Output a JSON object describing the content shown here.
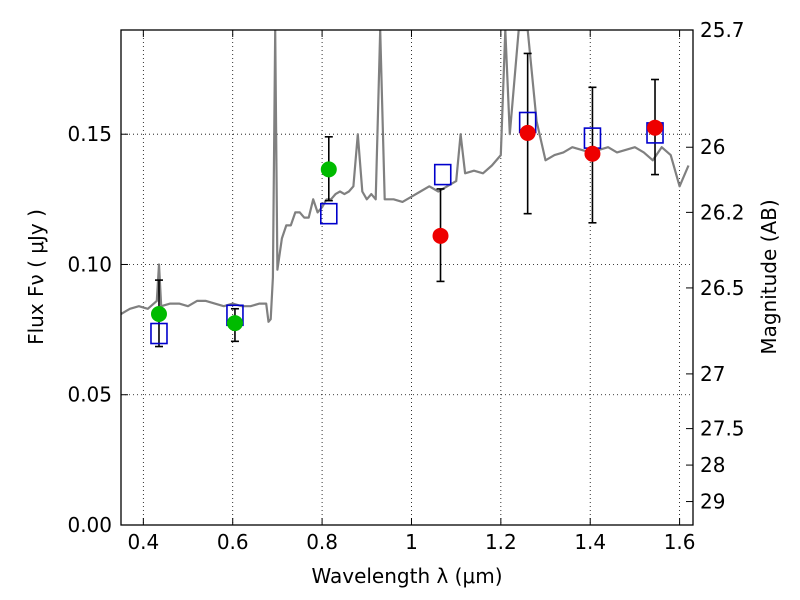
{
  "chart_data": {
    "type": "scatter",
    "xlabel": "Wavelength  λ (μm)",
    "ylabel": "Flux  Fν  ( μJy )",
    "y2label": "Magnitude (AB)",
    "xlim": [
      0.35,
      1.63
    ],
    "ylim": [
      0.0,
      0.19
    ],
    "grid": true,
    "x_ticks": [
      0.4,
      0.6,
      0.8,
      1.0,
      1.2,
      1.4,
      1.6
    ],
    "x_tick_labels": [
      "0.4",
      "0.6",
      "0.8",
      "1",
      "1.2",
      "1.4",
      "1.6"
    ],
    "y_ticks": [
      0.0,
      0.05,
      0.1,
      0.15
    ],
    "y_tick_labels": [
      "0.00",
      "0.05",
      "0.10",
      "0.15"
    ],
    "y2_ticks": [
      {
        "label": "25.7",
        "flux": 0.19
      },
      {
        "label": "26",
        "flux": 0.145
      },
      {
        "label": "26.2",
        "flux": 0.12
      },
      {
        "label": "26.5",
        "flux": 0.091
      },
      {
        "label": "27",
        "flux": 0.058
      },
      {
        "label": "27.5",
        "flux": 0.037
      },
      {
        "label": "28",
        "flux": 0.023
      },
      {
        "label": "29",
        "flux": 0.009
      }
    ],
    "colors": {
      "spectrum": "#808080",
      "model_box": "#0000cc",
      "green_point": "#00bb00",
      "red_point": "#ee0000",
      "error_bar": "#000000"
    },
    "series": [
      {
        "kind": "line",
        "points": [
          [
            0.35,
            0.081
          ],
          [
            0.37,
            0.083
          ],
          [
            0.39,
            0.084
          ],
          [
            0.41,
            0.083
          ],
          [
            0.43,
            0.086
          ],
          [
            0.435,
            0.1
          ],
          [
            0.44,
            0.084
          ],
          [
            0.46,
            0.085
          ],
          [
            0.48,
            0.085
          ],
          [
            0.5,
            0.084
          ],
          [
            0.52,
            0.086
          ],
          [
            0.54,
            0.086
          ],
          [
            0.56,
            0.085
          ],
          [
            0.58,
            0.084
          ],
          [
            0.6,
            0.085
          ],
          [
            0.62,
            0.084
          ],
          [
            0.64,
            0.084
          ],
          [
            0.66,
            0.085
          ],
          [
            0.675,
            0.085
          ],
          [
            0.68,
            0.078
          ],
          [
            0.685,
            0.079
          ],
          [
            0.69,
            0.095
          ],
          [
            0.695,
            0.19
          ],
          [
            0.7,
            0.098
          ],
          [
            0.71,
            0.11
          ],
          [
            0.72,
            0.115
          ],
          [
            0.73,
            0.115
          ],
          [
            0.74,
            0.12
          ],
          [
            0.75,
            0.12
          ],
          [
            0.76,
            0.118
          ],
          [
            0.77,
            0.118
          ],
          [
            0.78,
            0.125
          ],
          [
            0.79,
            0.12
          ],
          [
            0.8,
            0.122
          ],
          [
            0.81,
            0.125
          ],
          [
            0.82,
            0.125
          ],
          [
            0.83,
            0.127
          ],
          [
            0.84,
            0.128
          ],
          [
            0.85,
            0.127
          ],
          [
            0.86,
            0.128
          ],
          [
            0.87,
            0.13
          ],
          [
            0.88,
            0.15
          ],
          [
            0.89,
            0.128
          ],
          [
            0.9,
            0.125
          ],
          [
            0.91,
            0.127
          ],
          [
            0.92,
            0.125
          ],
          [
            0.93,
            0.19
          ],
          [
            0.94,
            0.125
          ],
          [
            0.96,
            0.125
          ],
          [
            0.98,
            0.124
          ],
          [
            1.0,
            0.126
          ],
          [
            1.02,
            0.128
          ],
          [
            1.04,
            0.13
          ],
          [
            1.06,
            0.128
          ],
          [
            1.08,
            0.13
          ],
          [
            1.1,
            0.132
          ],
          [
            1.11,
            0.15
          ],
          [
            1.12,
            0.135
          ],
          [
            1.14,
            0.136
          ],
          [
            1.16,
            0.135
          ],
          [
            1.18,
            0.138
          ],
          [
            1.2,
            0.142
          ],
          [
            1.21,
            0.19
          ],
          [
            1.22,
            0.15
          ],
          [
            1.24,
            0.19
          ],
          [
            1.26,
            0.19
          ],
          [
            1.28,
            0.155
          ],
          [
            1.3,
            0.14
          ],
          [
            1.32,
            0.142
          ],
          [
            1.34,
            0.143
          ],
          [
            1.36,
            0.145
          ],
          [
            1.38,
            0.144
          ],
          [
            1.4,
            0.143
          ],
          [
            1.42,
            0.144
          ],
          [
            1.44,
            0.145
          ],
          [
            1.46,
            0.143
          ],
          [
            1.48,
            0.144
          ],
          [
            1.5,
            0.145
          ],
          [
            1.52,
            0.143
          ],
          [
            1.54,
            0.14
          ],
          [
            1.56,
            0.145
          ],
          [
            1.58,
            0.142
          ],
          [
            1.6,
            0.13
          ],
          [
            1.62,
            0.138
          ]
        ]
      },
      {
        "kind": "model_boxes",
        "points": [
          {
            "x": 0.435,
            "y": 0.0735
          },
          {
            "x": 0.605,
            "y": 0.0805
          },
          {
            "x": 0.815,
            "y": 0.1195
          },
          {
            "x": 1.07,
            "y": 0.1345
          },
          {
            "x": 1.26,
            "y": 0.1545
          },
          {
            "x": 1.405,
            "y": 0.1485
          },
          {
            "x": 1.545,
            "y": 0.1505
          }
        ]
      },
      {
        "kind": "points",
        "color": "green",
        "points": [
          {
            "x": 0.435,
            "y": 0.081,
            "lo": 0.0685,
            "hi": 0.094
          },
          {
            "x": 0.605,
            "y": 0.0775,
            "lo": 0.0705,
            "hi": 0.083
          },
          {
            "x": 0.815,
            "y": 0.1365,
            "lo": 0.1245,
            "hi": 0.149
          }
        ]
      },
      {
        "kind": "points",
        "color": "red",
        "points": [
          {
            "x": 1.065,
            "y": 0.111,
            "lo": 0.0935,
            "hi": 0.129
          },
          {
            "x": 1.26,
            "y": 0.1505,
            "lo": 0.1195,
            "hi": 0.181
          },
          {
            "x": 1.405,
            "y": 0.1425,
            "lo": 0.116,
            "hi": 0.168
          },
          {
            "x": 1.545,
            "y": 0.1525,
            "lo": 0.1345,
            "hi": 0.171
          }
        ]
      }
    ]
  }
}
